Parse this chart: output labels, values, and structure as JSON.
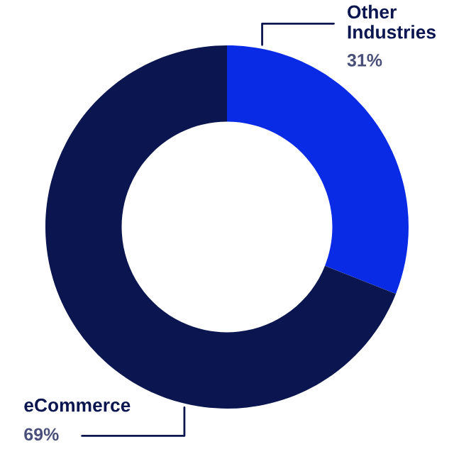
{
  "chart_data": {
    "type": "donut",
    "categories": [
      "Other\nIndustries",
      "eCommerce"
    ],
    "values": [
      31,
      69
    ],
    "colors": [
      "#0a2be6",
      "#0b1650"
    ],
    "value_labels": [
      "31%",
      "69%"
    ],
    "legend": false
  }
}
